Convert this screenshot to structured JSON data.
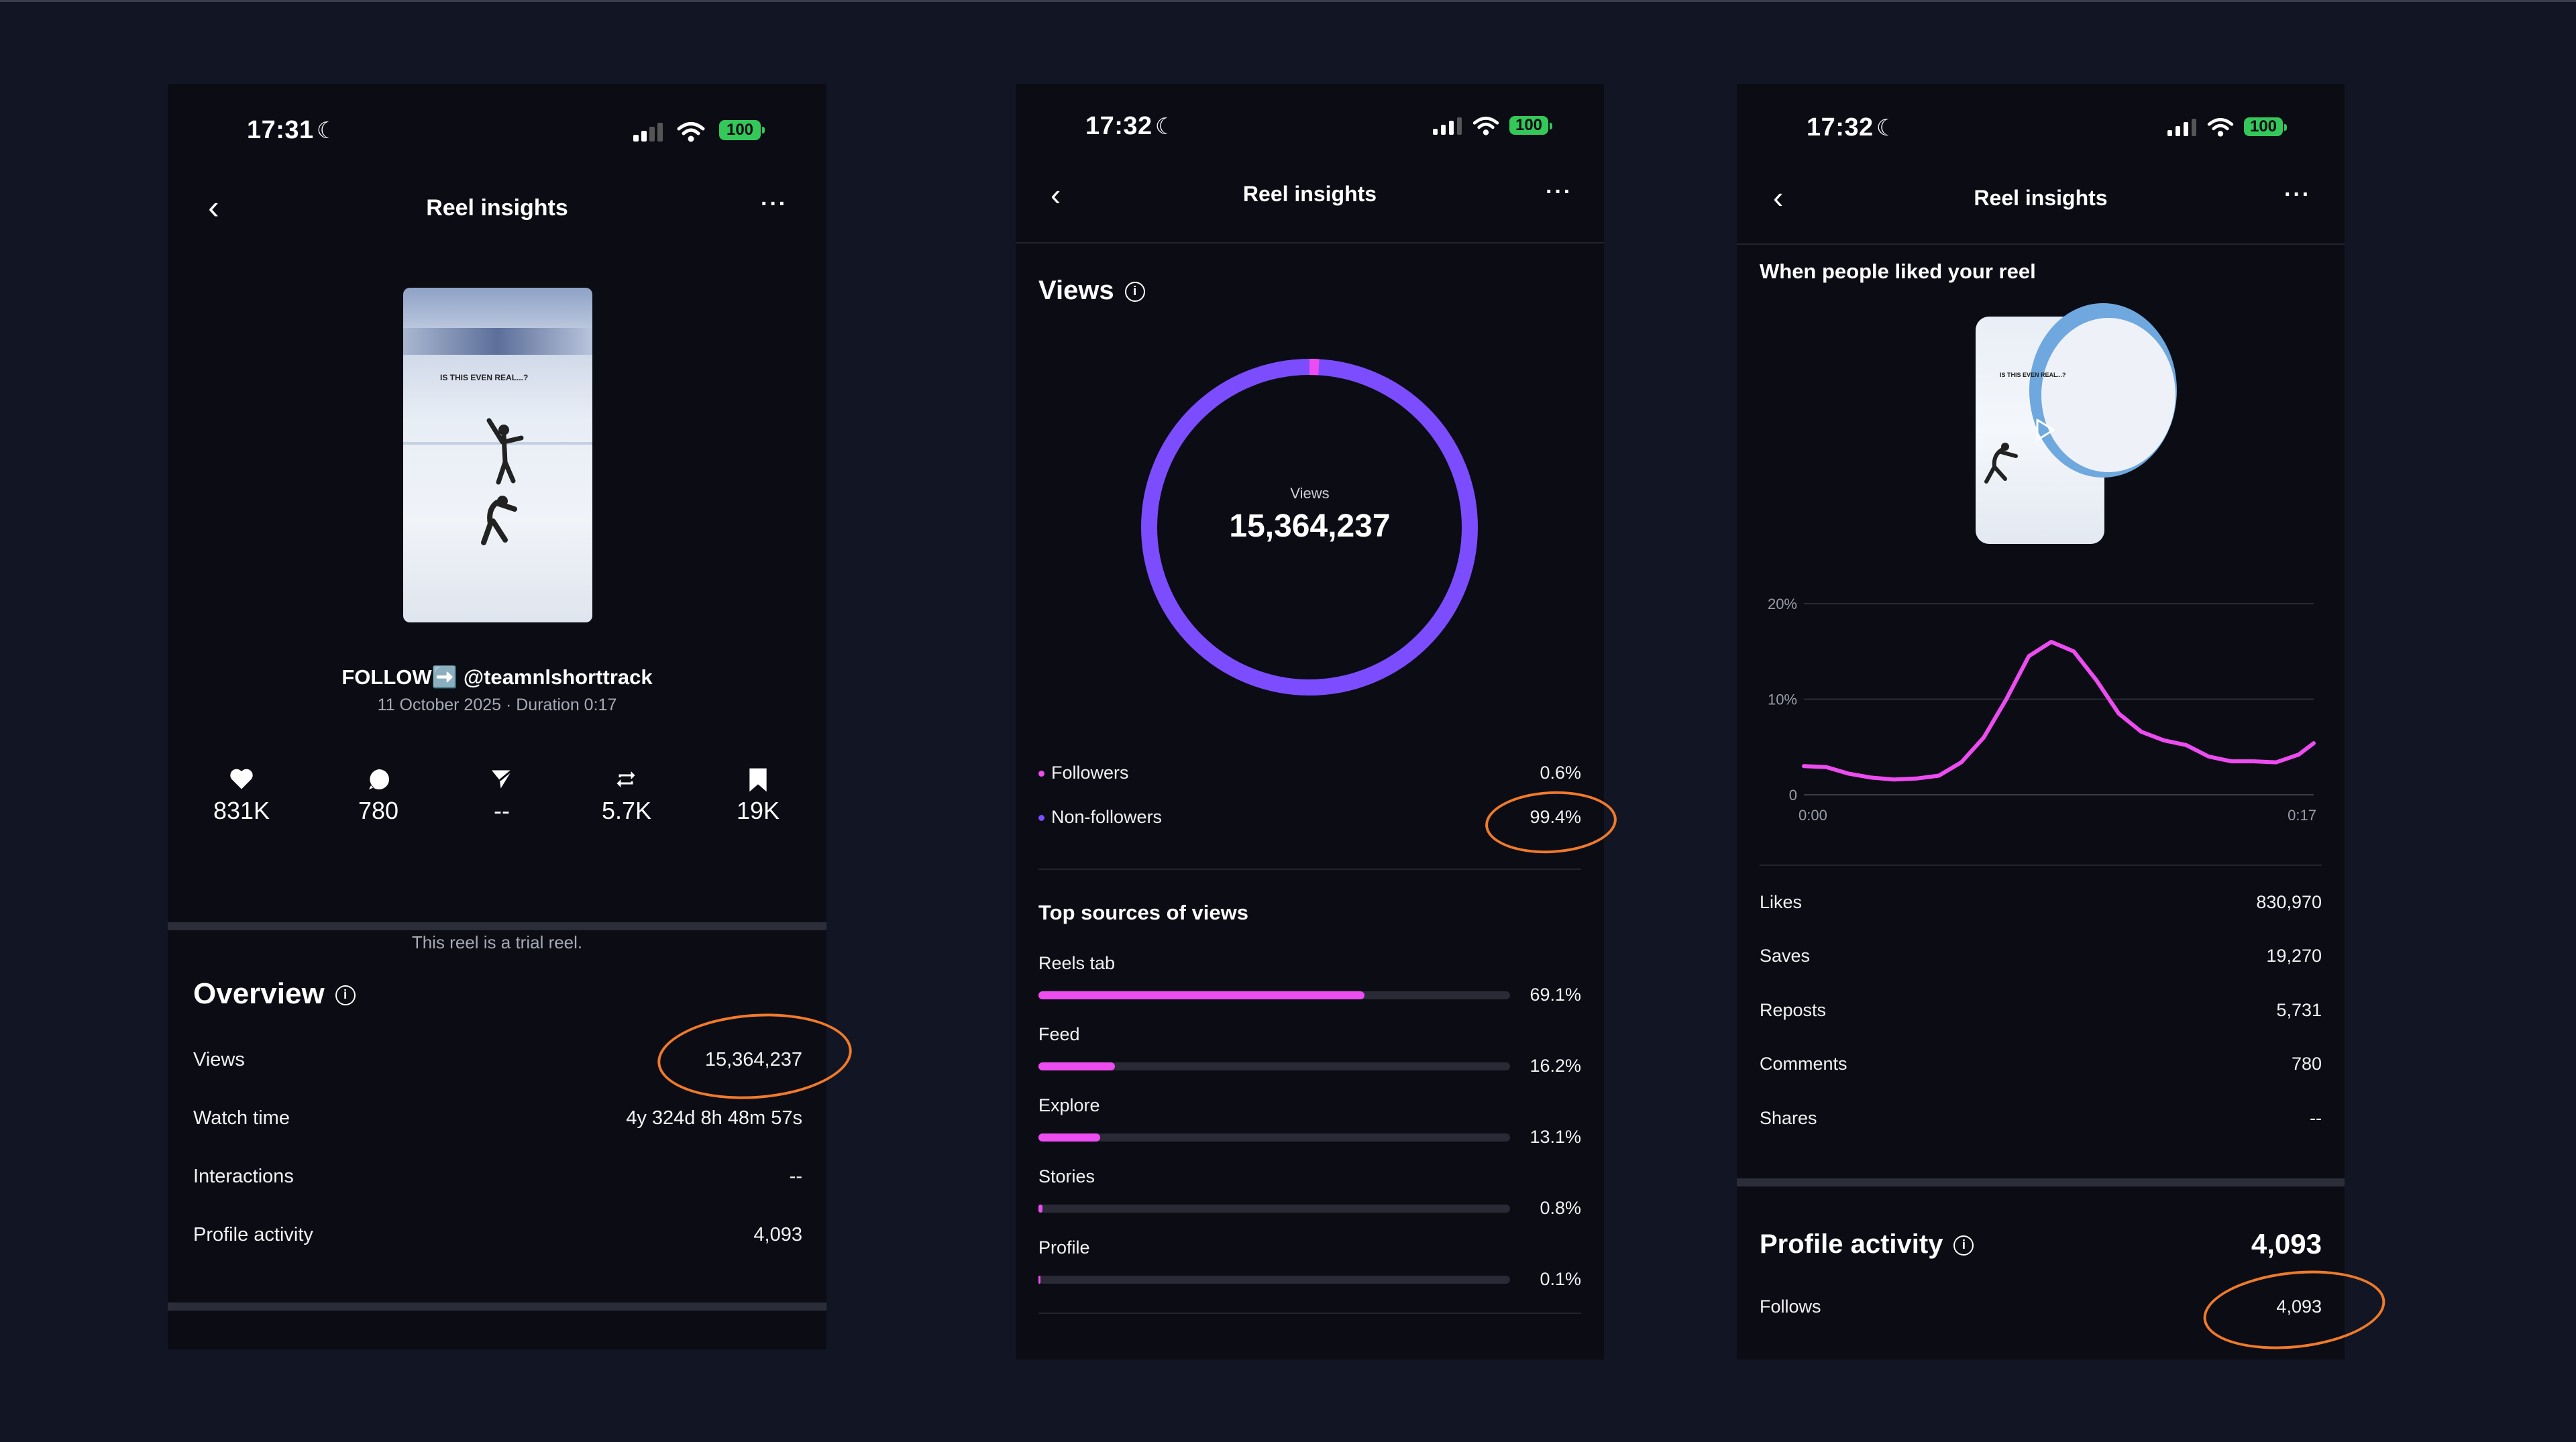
{
  "colors": {
    "background": "#121624",
    "panel": "#0b0c14",
    "accent_pink": "#ec4cf0",
    "ring_purple": "#7c4dff",
    "annotation_orange": "#f07a2a",
    "battery_green": "#34c759"
  },
  "screens": [
    {
      "status": {
        "time": "17:31",
        "battery": "100"
      },
      "nav": {
        "title": "Reel insights",
        "more": "···"
      },
      "reel": {
        "thumbnail_caption": "IS THIS EVEN REAL...?",
        "caption": "FOLLOW➡️ @teamnlshorttrack",
        "meta": "11 October 2025 · Duration 0:17"
      },
      "stats": [
        {
          "icon": "heart-icon",
          "value": "831K"
        },
        {
          "icon": "comment-icon",
          "value": "780"
        },
        {
          "icon": "share-icon",
          "value": "--"
        },
        {
          "icon": "repost-icon",
          "value": "5.7K"
        },
        {
          "icon": "bookmark-icon",
          "value": "19K"
        }
      ],
      "trial_note": "This reel is a trial reel.",
      "overview": {
        "title": "Overview",
        "rows": [
          {
            "label": "Views",
            "value": "15,364,237"
          },
          {
            "label": "Watch time",
            "value": "4y 324d 8h 48m 57s"
          },
          {
            "label": "Interactions",
            "value": "--"
          },
          {
            "label": "Profile activity",
            "value": "4,093"
          }
        ]
      }
    },
    {
      "status": {
        "time": "17:32",
        "battery": "100"
      },
      "nav": {
        "title": "Reel insights",
        "more": "···"
      },
      "views": {
        "title": "Views",
        "ring_label": "Views",
        "total": "15,364,237",
        "followers_fraction": 0.006,
        "legend": [
          {
            "label": "Followers",
            "value": "0.6%",
            "color": "#ec4cf0"
          },
          {
            "label": "Non-followers",
            "value": "99.4%",
            "color": "#7c4dff"
          }
        ]
      },
      "sources": {
        "title": "Top sources of views",
        "items": [
          {
            "label": "Reels tab",
            "value": "69.1%",
            "fraction": 0.691
          },
          {
            "label": "Feed",
            "value": "16.2%",
            "fraction": 0.162
          },
          {
            "label": "Explore",
            "value": "13.1%",
            "fraction": 0.131
          },
          {
            "label": "Stories",
            "value": "0.8%",
            "fraction": 0.008
          },
          {
            "label": "Profile",
            "value": "0.1%",
            "fraction": 0.001
          }
        ]
      }
    },
    {
      "status": {
        "time": "17:32",
        "battery": "100"
      },
      "nav": {
        "title": "Reel insights",
        "more": "···"
      },
      "likes_chart": {
        "title": "When people liked your reel",
        "thumbnail_caption": "IS THIS EVEN REAL...?"
      },
      "rows": [
        {
          "label": "Likes",
          "value": "830,970"
        },
        {
          "label": "Saves",
          "value": "19,270"
        },
        {
          "label": "Reposts",
          "value": "5,731"
        },
        {
          "label": "Comments",
          "value": "780"
        },
        {
          "label": "Shares",
          "value": "--"
        }
      ],
      "profile_activity": {
        "title": "Profile activity",
        "total": "4,093",
        "rows": [
          {
            "label": "Follows",
            "value": "4,093"
          }
        ]
      }
    }
  ],
  "chart_data": {
    "type": "line",
    "title": "When people liked your reel",
    "xlabel": "",
    "ylabel": "",
    "x_tick_labels": [
      "0:00",
      "0:17"
    ],
    "y_tick_labels": [
      "20%",
      "10%",
      "0"
    ],
    "ylim": [
      0,
      20
    ],
    "xlim": [
      0,
      17
    ],
    "grid": true,
    "series": [
      {
        "color": "#ec4cf0",
        "x": [
          0,
          0.75,
          1.5,
          2.25,
          3,
          3.75,
          4.5,
          5.25,
          6,
          6.75,
          7.5,
          8.25,
          9,
          9.75,
          10.5,
          11.25,
          12,
          12.75,
          13.5,
          14.25,
          15,
          15.75,
          16.5,
          17
        ],
        "values": [
          3.0,
          2.9,
          2.2,
          1.8,
          1.6,
          1.7,
          2.0,
          3.4,
          6.0,
          10.0,
          14.5,
          16.0,
          15.0,
          12.0,
          8.5,
          6.6,
          5.7,
          5.2,
          4.0,
          3.5,
          3.5,
          3.4,
          4.2,
          5.4
        ]
      }
    ]
  }
}
